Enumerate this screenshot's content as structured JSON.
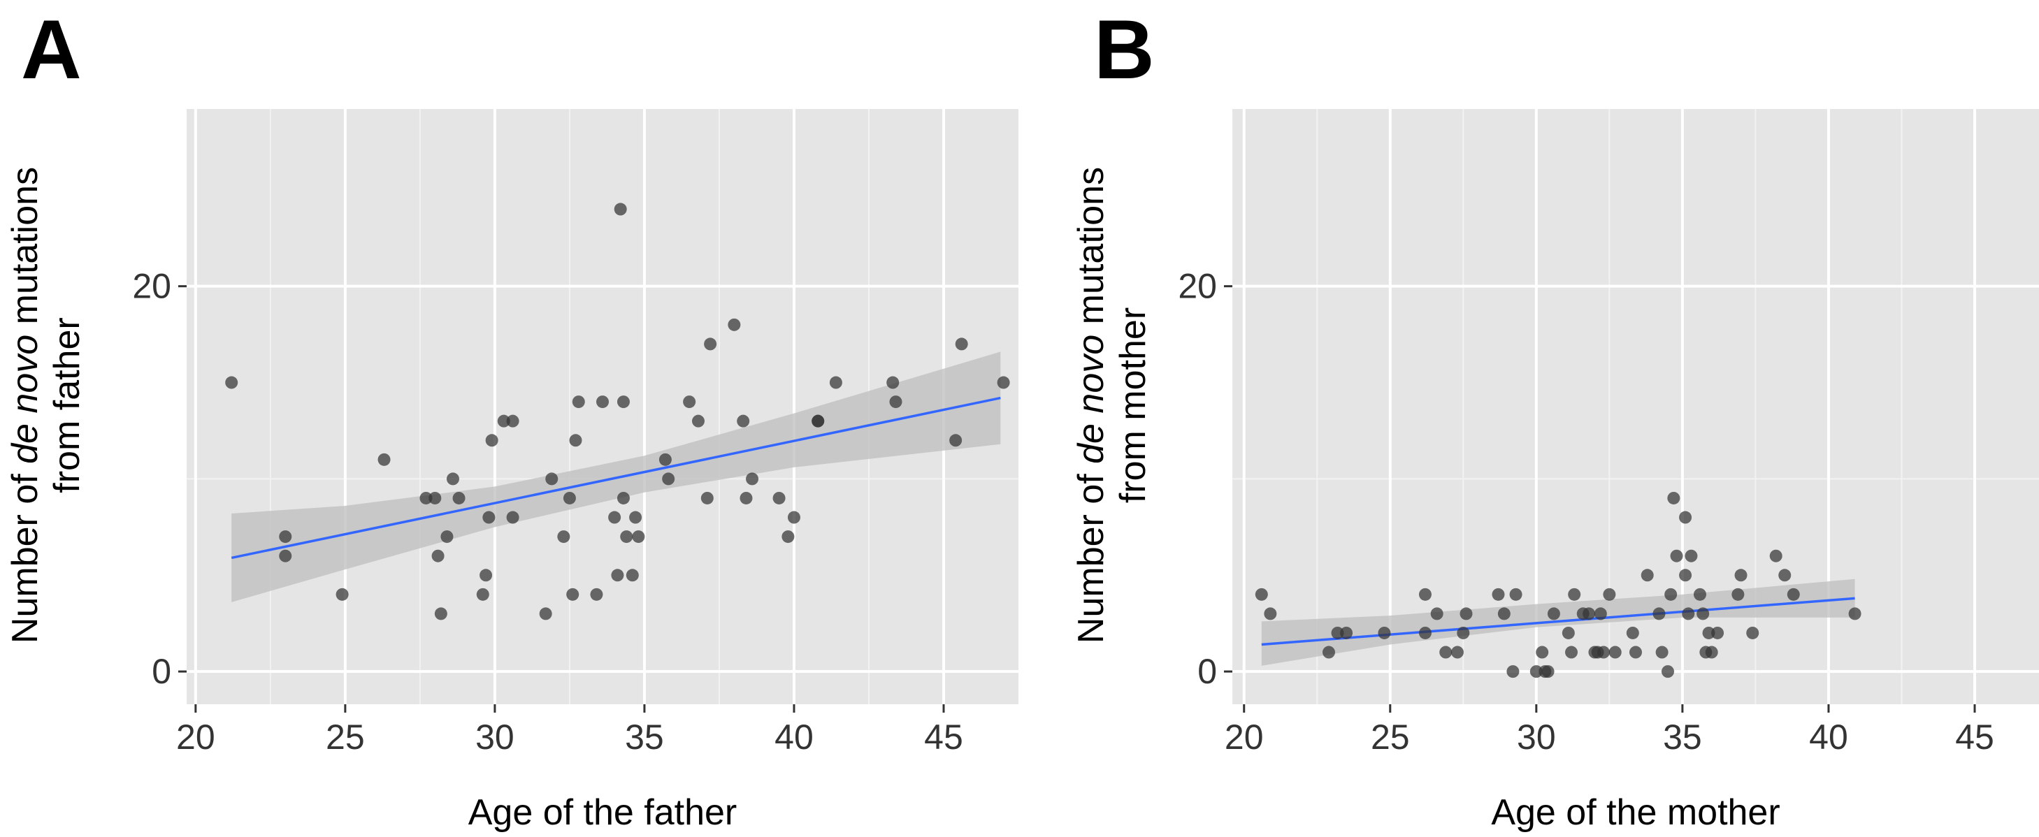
{
  "panels": {
    "A": {
      "letter": "A"
    },
    "B": {
      "letter": "B"
    }
  },
  "chart_data": [
    {
      "type": "scatter",
      "panel": "A",
      "title": "",
      "xlabel": "Age of the father",
      "ylabel_parts": [
        "Number of ",
        "de novo",
        " mutations"
      ],
      "ylabel_line2": "from father",
      "xlim": [
        19.7,
        47.5
      ],
      "ylim": [
        -1.7,
        29.2
      ],
      "xticks": [
        20,
        25,
        30,
        35,
        40,
        45
      ],
      "yticks": [
        0,
        20
      ],
      "grid": true,
      "background": "#e5e5e5",
      "point_color": "#333333",
      "trend_color": "#3366ff",
      "band_color": "#bdbdbd",
      "points": [
        [
          21.2,
          15
        ],
        [
          23,
          7
        ],
        [
          23,
          6
        ],
        [
          24.9,
          4
        ],
        [
          26.3,
          11
        ],
        [
          27.7,
          9
        ],
        [
          28,
          9
        ],
        [
          28.1,
          6
        ],
        [
          28.2,
          3
        ],
        [
          28.4,
          7
        ],
        [
          28.6,
          10
        ],
        [
          28.8,
          9
        ],
        [
          29.6,
          4
        ],
        [
          29.7,
          5
        ],
        [
          29.8,
          8
        ],
        [
          29.9,
          12
        ],
        [
          30.3,
          13
        ],
        [
          30.6,
          13
        ],
        [
          30.6,
          8
        ],
        [
          31.7,
          3
        ],
        [
          31.9,
          10
        ],
        [
          32.3,
          7
        ],
        [
          32.5,
          9
        ],
        [
          32.6,
          4
        ],
        [
          32.7,
          12
        ],
        [
          32.8,
          14
        ],
        [
          33.4,
          4
        ],
        [
          33.6,
          14
        ],
        [
          34,
          8
        ],
        [
          34.1,
          5
        ],
        [
          34.2,
          24
        ],
        [
          34.3,
          14
        ],
        [
          34.3,
          9
        ],
        [
          34.4,
          7
        ],
        [
          34.6,
          5
        ],
        [
          34.7,
          8
        ],
        [
          34.8,
          7
        ],
        [
          35.7,
          11
        ],
        [
          35.8,
          10
        ],
        [
          36.5,
          14
        ],
        [
          36.8,
          13
        ],
        [
          37.1,
          9
        ],
        [
          37.2,
          17
        ],
        [
          38,
          18
        ],
        [
          38.3,
          13
        ],
        [
          38.4,
          9
        ],
        [
          38.6,
          10
        ],
        [
          39.5,
          9
        ],
        [
          39.8,
          7
        ],
        [
          40,
          8
        ],
        [
          40.8,
          13
        ],
        [
          40.8,
          13
        ],
        [
          41.4,
          15
        ],
        [
          43.3,
          15
        ],
        [
          43.4,
          14
        ],
        [
          45.4,
          12
        ],
        [
          45.6,
          17
        ],
        [
          47,
          15
        ]
      ],
      "trend": {
        "x": [
          21.2,
          46.9
        ],
        "y": [
          5.9,
          14.2
        ]
      },
      "band": {
        "x": [
          21.2,
          25,
          30,
          35,
          40,
          46.9
        ],
        "lower": [
          3.6,
          5.3,
          7.5,
          9.3,
          10.6,
          11.8
        ],
        "upper": [
          8.2,
          8.6,
          9.6,
          11.2,
          13.4,
          16.6
        ]
      }
    },
    {
      "type": "scatter",
      "panel": "B",
      "title": "",
      "xlabel": "Age of the mother",
      "ylabel_parts": [
        "Number of ",
        "de novo",
        " mutations"
      ],
      "ylabel_line2": "from mother",
      "xlim": [
        19.6,
        47.2
      ],
      "ylim": [
        -1.7,
        29.2
      ],
      "xticks": [
        20,
        25,
        30,
        35,
        40,
        45
      ],
      "yticks": [
        0,
        20
      ],
      "grid": true,
      "background": "#e5e5e5",
      "point_color": "#333333",
      "trend_color": "#3366ff",
      "band_color": "#bdbdbd",
      "points": [
        [
          20.6,
          4
        ],
        [
          20.9,
          3
        ],
        [
          22.9,
          1
        ],
        [
          23.2,
          2
        ],
        [
          23.5,
          2
        ],
        [
          24.8,
          2
        ],
        [
          26.2,
          4
        ],
        [
          26.2,
          2
        ],
        [
          26.6,
          3
        ],
        [
          26.9,
          1
        ],
        [
          27.3,
          1
        ],
        [
          27.5,
          2
        ],
        [
          27.6,
          3
        ],
        [
          28.7,
          4
        ],
        [
          28.9,
          3
        ],
        [
          29.2,
          0
        ],
        [
          29.3,
          4
        ],
        [
          30,
          0
        ],
        [
          30.2,
          1
        ],
        [
          30.3,
          0
        ],
        [
          30.4,
          0
        ],
        [
          30.6,
          3
        ],
        [
          31.1,
          2
        ],
        [
          31.2,
          1
        ],
        [
          31.3,
          4
        ],
        [
          31.6,
          3
        ],
        [
          31.8,
          3
        ],
        [
          32,
          1
        ],
        [
          32.1,
          1
        ],
        [
          32.2,
          3
        ],
        [
          32.3,
          1
        ],
        [
          32.5,
          4
        ],
        [
          32.7,
          1
        ],
        [
          33.3,
          2
        ],
        [
          33.4,
          1
        ],
        [
          33.8,
          5
        ],
        [
          34.2,
          3
        ],
        [
          34.3,
          1
        ],
        [
          34.5,
          0
        ],
        [
          34.6,
          4
        ],
        [
          34.7,
          9
        ],
        [
          34.8,
          6
        ],
        [
          35.1,
          5
        ],
        [
          35.1,
          8
        ],
        [
          35.3,
          6
        ],
        [
          35.2,
          3
        ],
        [
          35.6,
          4
        ],
        [
          35.7,
          3
        ],
        [
          35.8,
          1
        ],
        [
          35.9,
          2
        ],
        [
          36,
          1
        ],
        [
          36.2,
          2
        ],
        [
          36.9,
          4
        ],
        [
          37,
          5
        ],
        [
          37.4,
          2
        ],
        [
          38.2,
          6
        ],
        [
          38.5,
          5
        ],
        [
          38.8,
          4
        ],
        [
          40.9,
          3
        ]
      ],
      "trend": {
        "x": [
          20.6,
          40.9
        ],
        "y": [
          1.4,
          3.8
        ]
      },
      "band": {
        "x": [
          20.6,
          25,
          30,
          35,
          40.9
        ],
        "lower": [
          0.3,
          1.4,
          2.3,
          2.8,
          2.8
        ],
        "upper": [
          2.6,
          2.9,
          3.5,
          4.0,
          4.8
        ]
      }
    }
  ]
}
